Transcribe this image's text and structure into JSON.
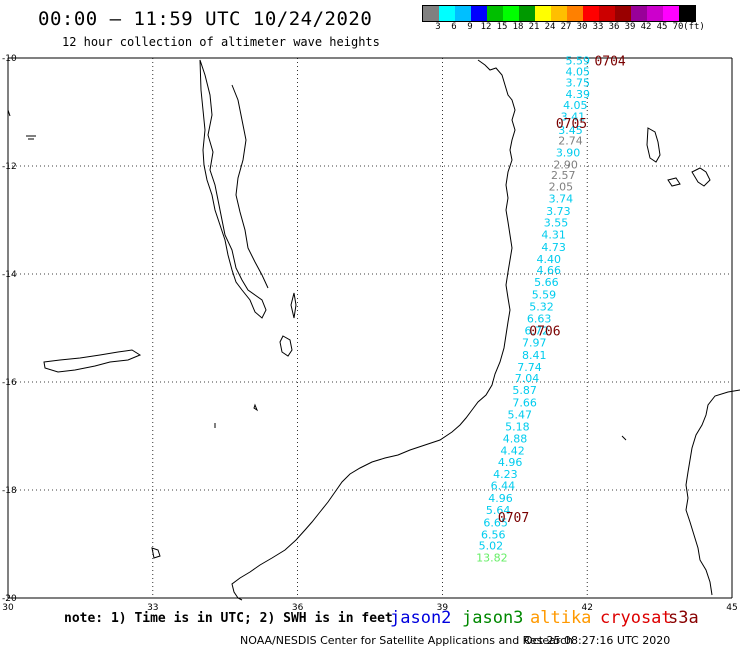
{
  "header": {
    "title": "00:00 – 11:59 UTC 10/24/2020",
    "subtitle": "12 hour collection of altimeter wave heights"
  },
  "colorbar": {
    "colors": [
      "#808080",
      "#00ffff",
      "#00bfff",
      "#0000ff",
      "#00bf00",
      "#00ff00",
      "#009900",
      "#ffff00",
      "#ffbf00",
      "#ff8000",
      "#ff0000",
      "#cc0000",
      "#990000",
      "#990099",
      "#cc00cc",
      "#ff00ff",
      "#000000"
    ],
    "labels": [
      "3",
      "6",
      "9",
      "12",
      "15",
      "18",
      "21",
      "24",
      "27",
      "30",
      "33",
      "36",
      "39",
      "42",
      "45",
      "70",
      "(ft)"
    ]
  },
  "axes": {
    "lat_labels": [
      "-10",
      "-12",
      "-14",
      "-16",
      "-18",
      "-20"
    ],
    "lon_labels": [
      "30",
      "33",
      "36",
      "39",
      "42",
      "45"
    ]
  },
  "time_labels": [
    {
      "text": "0704",
      "lon": 42.15,
      "lat": -10.05
    },
    {
      "text": "0705",
      "lon": 41.35,
      "lat": -11.2
    },
    {
      "text": "0706",
      "lon": 40.8,
      "lat": -15.05
    },
    {
      "text": "0707",
      "lon": 40.15,
      "lat": -18.5
    }
  ],
  "wave_heights": [
    {
      "v": "5.59",
      "lon": 41.55,
      "lat": -10.05,
      "c": "#00ccee"
    },
    {
      "v": "4.05",
      "lon": 41.55,
      "lat": -10.25,
      "c": "#00ccee"
    },
    {
      "v": "3.75",
      "lon": 41.55,
      "lat": -10.45,
      "c": "#00ccee"
    },
    {
      "v": "4.39",
      "lon": 41.55,
      "lat": -10.67,
      "c": "#00ccee"
    },
    {
      "v": "4.05",
      "lon": 41.5,
      "lat": -10.87,
      "c": "#00ccee"
    },
    {
      "v": "3.41",
      "lon": 41.45,
      "lat": -11.08,
      "c": "#00ccee"
    },
    {
      "v": "3.45",
      "lon": 41.4,
      "lat": -11.33,
      "c": "#00ccee"
    },
    {
      "v": "2.74",
      "lon": 41.4,
      "lat": -11.53,
      "c": "#808080"
    },
    {
      "v": "3.90",
      "lon": 41.35,
      "lat": -11.75,
      "c": "#00ccee"
    },
    {
      "v": "2.90",
      "lon": 41.3,
      "lat": -11.97,
      "c": "#808080"
    },
    {
      "v": "2.57",
      "lon": 41.25,
      "lat": -12.17,
      "c": "#808080"
    },
    {
      "v": "2.05",
      "lon": 41.2,
      "lat": -12.38,
      "c": "#808080"
    },
    {
      "v": "3.74",
      "lon": 41.2,
      "lat": -12.6,
      "c": "#00ccee"
    },
    {
      "v": "3.73",
      "lon": 41.15,
      "lat": -12.83,
      "c": "#00ccee"
    },
    {
      "v": "3.55",
      "lon": 41.1,
      "lat": -13.05,
      "c": "#00ccee"
    },
    {
      "v": "4.31",
      "lon": 41.05,
      "lat": -13.27,
      "c": "#00ccee"
    },
    {
      "v": "4.73",
      "lon": 41.05,
      "lat": -13.5,
      "c": "#00ccee"
    },
    {
      "v": "4.40",
      "lon": 40.95,
      "lat": -13.72,
      "c": "#00ccee"
    },
    {
      "v": "4.66",
      "lon": 40.95,
      "lat": -13.93,
      "c": "#00ccee"
    },
    {
      "v": "5.66",
      "lon": 40.9,
      "lat": -14.15,
      "c": "#00ccee"
    },
    {
      "v": "5.59",
      "lon": 40.85,
      "lat": -14.38,
      "c": "#00ccee"
    },
    {
      "v": "5.32",
      "lon": 40.8,
      "lat": -14.6,
      "c": "#00ccee"
    },
    {
      "v": "6.63",
      "lon": 40.75,
      "lat": -14.82,
      "c": "#00ccee"
    },
    {
      "v": "6.72",
      "lon": 40.7,
      "lat": -15.05,
      "c": "#00ccee"
    },
    {
      "v": "7.97",
      "lon": 40.65,
      "lat": -15.27,
      "c": "#00ccee"
    },
    {
      "v": "8.41",
      "lon": 40.65,
      "lat": -15.5,
      "c": "#00ccee"
    },
    {
      "v": "7.74",
      "lon": 40.55,
      "lat": -15.72,
      "c": "#00ccee"
    },
    {
      "v": "7.04",
      "lon": 40.5,
      "lat": -15.93,
      "c": "#00ccee"
    },
    {
      "v": "5.87",
      "lon": 40.45,
      "lat": -16.15,
      "c": "#00ccee"
    },
    {
      "v": "7.66",
      "lon": 40.45,
      "lat": -16.38,
      "c": "#00ccee"
    },
    {
      "v": "5.47",
      "lon": 40.35,
      "lat": -16.6,
      "c": "#00ccee"
    },
    {
      "v": "5.18",
      "lon": 40.3,
      "lat": -16.82,
      "c": "#00ccee"
    },
    {
      "v": "4.88",
      "lon": 40.25,
      "lat": -17.05,
      "c": "#00ccee"
    },
    {
      "v": "4.42",
      "lon": 40.2,
      "lat": -17.27,
      "c": "#00ccee"
    },
    {
      "v": "4.96",
      "lon": 40.15,
      "lat": -17.48,
      "c": "#00ccee"
    },
    {
      "v": "4.23",
      "lon": 40.05,
      "lat": -17.7,
      "c": "#00ccee"
    },
    {
      "v": "6.44",
      "lon": 40.0,
      "lat": -17.92,
      "c": "#00ccee"
    },
    {
      "v": "4.96",
      "lon": 39.95,
      "lat": -18.15,
      "c": "#00ccee"
    },
    {
      "v": "5.64",
      "lon": 39.9,
      "lat": -18.37,
      "c": "#00ccee"
    },
    {
      "v": "6.65",
      "lon": 39.85,
      "lat": -18.6,
      "c": "#00ccee"
    },
    {
      "v": "6.56",
      "lon": 39.8,
      "lat": -18.82,
      "c": "#00ccee"
    },
    {
      "v": "5.02",
      "lon": 39.75,
      "lat": -19.03,
      "c": "#00ccee"
    },
    {
      "v": "13.82",
      "lon": 39.7,
      "lat": -19.25,
      "c": "#66ee66"
    }
  ],
  "legend": {
    "note": "note:  1) Time is in UTC; 2) SWH is in feet",
    "satellites": [
      {
        "name": "jason2",
        "color": "#0000dd"
      },
      {
        "name": "jason3",
        "color": "#008800"
      },
      {
        "name": "altika",
        "color": "#ff9900"
      },
      {
        "name": "cryosat",
        "color": "#dd0000"
      },
      {
        "name": "s3a",
        "color": "#880000"
      }
    ]
  },
  "footer": {
    "credit": "NOAA/NESDIS Center for Satellite Applications and Research",
    "timestamp": "Oct 25 08:27:16 UTC 2020"
  },
  "colors": {
    "time_label": "#7a0000",
    "coast": "#000000"
  }
}
